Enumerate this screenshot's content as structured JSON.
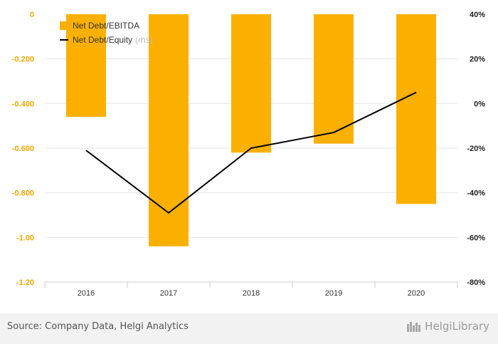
{
  "chart_data": {
    "type": "bar",
    "categories": [
      "2016",
      "2017",
      "2018",
      "2019",
      "2020"
    ],
    "series": [
      {
        "name": "Net Debt/EBITDA",
        "type": "bar",
        "axis": "left",
        "values": [
          -0.46,
          -1.04,
          -0.62,
          -0.58,
          -0.85
        ]
      },
      {
        "name": "Net Debt/Equity",
        "legend_suffix": "(rhs)",
        "type": "line",
        "axis": "right",
        "values": [
          -0.21,
          -0.49,
          -0.2,
          -0.13,
          0.05
        ]
      }
    ],
    "y_left": {
      "range": [
        -1.2,
        0
      ],
      "ticks": [
        "0",
        "-0.200",
        "-0.400",
        "-0.600",
        "-0.800",
        "-1.00",
        "-1.20"
      ]
    },
    "y_right": {
      "range": [
        -0.8,
        0.4
      ],
      "ticks": [
        "40%",
        "20%",
        "0%",
        "-20%",
        "-40%",
        "-60%",
        "-80%"
      ]
    },
    "grid": true,
    "legend_position": "top-left",
    "colors": {
      "bar": "#FBB000",
      "line": "#000000",
      "left_tick": "#F0A800",
      "right_tick": "#222222",
      "grid": "#e6e6e6"
    }
  },
  "footer": {
    "source": "Source: Company Data, Helgi Analytics",
    "logo": "HelgiLibrary"
  }
}
